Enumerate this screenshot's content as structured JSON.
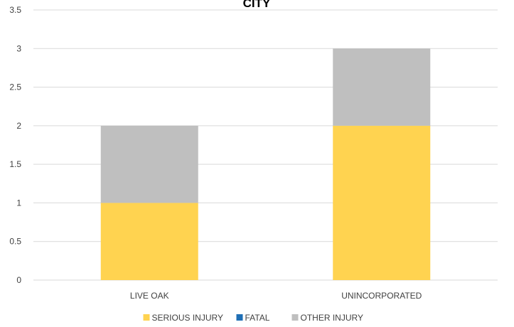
{
  "chart_data": {
    "type": "bar",
    "stacked": true,
    "title": "CITY",
    "xlabel": "",
    "ylabel": "",
    "categories": [
      "LIVE OAK",
      "UNINCORPORATED"
    ],
    "series": [
      {
        "name": "SERIOUS INJURY",
        "values": [
          1,
          2
        ],
        "color": "#FFD350"
      },
      {
        "name": "FATAL",
        "values": [
          0,
          0
        ],
        "color": "#1F6FB5"
      },
      {
        "name": "OTHER INJURY",
        "values": [
          1,
          1
        ],
        "color": "#BFBFBF"
      }
    ],
    "ylim": [
      0,
      3.5
    ],
    "yticks": [
      "0",
      "0.5",
      "1",
      "1.5",
      "2",
      "2.5",
      "3",
      "3.5"
    ],
    "grid": true,
    "legend_position": "bottom"
  }
}
